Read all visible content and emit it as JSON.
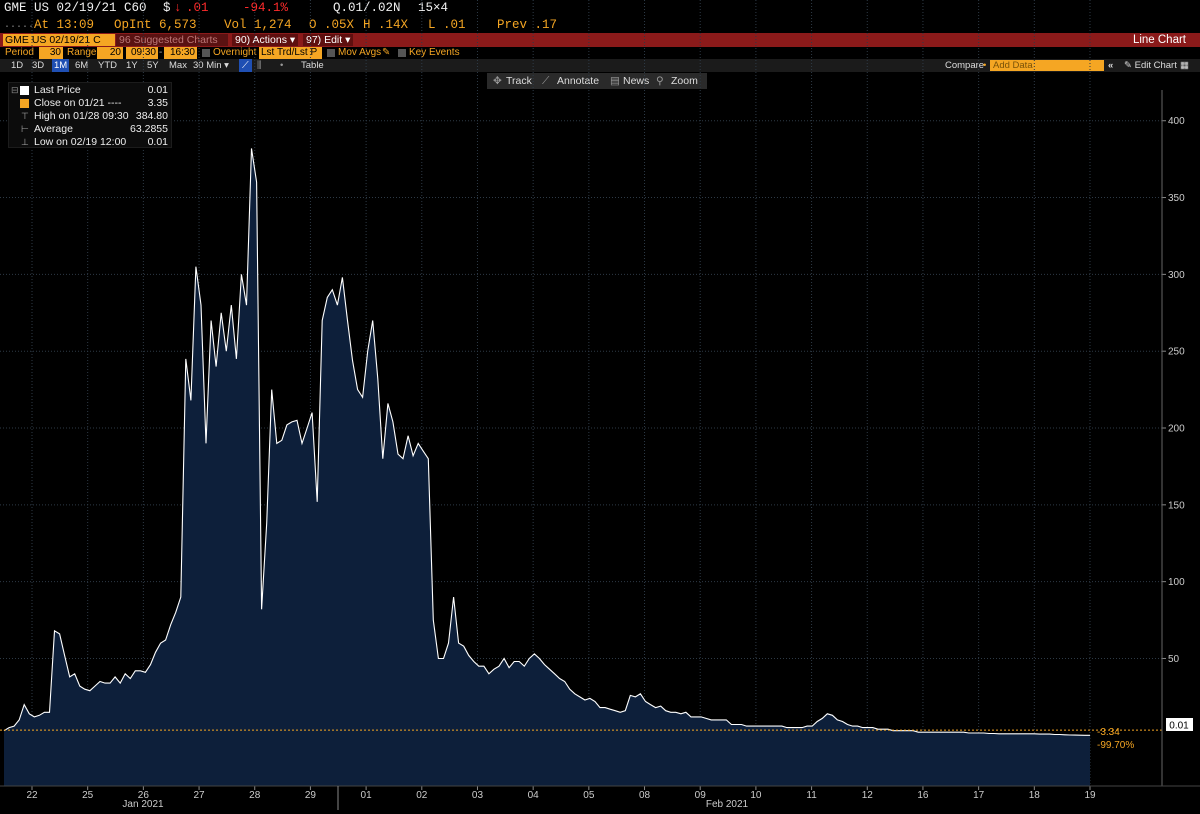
{
  "header": {
    "ticker": "GME US 02/19/21 C60",
    "currency": "$",
    "down_arrow": "↓",
    "last": ".01",
    "pct_change": "-94.1%",
    "quote": "Q.01/.02N",
    "size": "15×4",
    "at_time": "At 13:09",
    "open_int": "OpInt 6,573",
    "volume": "Vol 1,274",
    "open": "O .05X",
    "high": "H .14X",
    "low": "L .01",
    "prev": "Prev .17"
  },
  "toolbar": {
    "security": "GME US 02/19/21 C",
    "suggested": "96 Suggested Charts",
    "actions": "90) Actions ▾",
    "edit": "97) Edit ▾",
    "chart_type": "Line Chart"
  },
  "period_bar": {
    "period_label": "Period",
    "period_value": "30",
    "range_label": "Range",
    "range_value": "20",
    "start_time": "09:30",
    "end_time": "16:30",
    "overnight": "Overnight",
    "lst_trd": "Lst Trd/Lst P",
    "mov_avgs": "Mov Avgs",
    "key_events": "Key Events"
  },
  "range_bar": {
    "ranges": [
      "1D",
      "3D",
      "1M",
      "6M",
      "YTD",
      "1Y",
      "5Y",
      "Max"
    ],
    "selected": "1M",
    "interval": "30 Min ▾",
    "table": "Table",
    "compare": "Compare",
    "add_data_placeholder": "Add Data",
    "edit_chart": "Edit Chart"
  },
  "tools": {
    "track": "Track",
    "annotate": "Annotate",
    "news": "News",
    "zoom": "Zoom"
  },
  "legend": {
    "last_price_label": "Last Price",
    "last_price_value": "0.01",
    "close_label": "Close on 01/21 ----",
    "close_value": "3.35",
    "high_label": "High on 01/28 09:30",
    "high_value": "384.80",
    "avg_label": "Average",
    "avg_value": "63.2855",
    "low_label": "Low on 02/19 12:00",
    "low_value": "0.01"
  },
  "colors": {
    "area_fill": "#0d1f3a",
    "line": "#ffffff",
    "reference": "#f5a623",
    "grid": "#2e3a46",
    "toolbar": "#8b1a1a",
    "accent": "#f5a623",
    "negative": "#ff2b2b"
  },
  "chart_data": {
    "type": "area",
    "title": "",
    "xlabel": "",
    "ylabel": "",
    "ylim": [
      -33,
      420
    ],
    "y_ticks": [
      50,
      100,
      150,
      200,
      250,
      300,
      350,
      400
    ],
    "grid": true,
    "x_tick_labels": [
      "22",
      "25",
      "26",
      "27",
      "28",
      "29",
      "01",
      "02",
      "03",
      "04",
      "05",
      "08",
      "09",
      "10",
      "11",
      "12",
      "16",
      "17",
      "18",
      "19"
    ],
    "month_labels": [
      "Jan 2021",
      "Feb 2021"
    ],
    "reference_line": {
      "value": 3.35,
      "label_change": "-3.34",
      "label_pct": "-99.70%"
    },
    "last_value_label": "0.01",
    "series": [
      {
        "values": [
          3,
          5,
          6,
          10,
          20,
          14,
          12,
          13,
          15,
          15,
          68,
          66,
          52,
          38,
          40,
          32,
          30,
          29,
          32,
          35,
          34,
          34,
          38,
          34,
          40,
          37,
          42,
          42,
          41,
          46,
          54,
          60,
          62,
          72,
          80,
          90,
          245,
          218,
          305,
          280,
          190,
          270,
          240,
          275,
          250,
          280,
          245,
          300,
          280,
          382,
          360,
          82,
          138,
          225,
          190,
          192,
          202,
          204,
          205,
          190,
          200,
          210,
          152,
          270,
          285,
          290,
          280,
          298,
          270,
          244,
          225,
          220,
          250,
          270,
          232,
          180,
          216,
          204,
          183,
          180,
          195,
          182,
          190,
          185,
          180,
          75,
          50,
          50,
          60,
          90,
          60,
          58,
          52,
          48,
          45,
          45,
          40,
          43,
          45,
          50,
          44,
          48,
          48,
          45,
          50,
          53,
          50,
          46,
          43,
          40,
          37,
          35,
          30,
          27,
          25,
          23,
          24,
          22,
          18,
          18,
          17,
          16,
          15,
          16,
          26,
          25,
          27,
          22,
          20,
          18,
          19,
          16,
          15,
          15,
          14,
          15,
          12,
          12,
          12,
          11,
          10,
          10,
          10,
          10,
          7,
          7,
          7,
          6,
          6,
          6,
          6,
          6,
          6,
          6,
          6,
          5,
          5,
          5,
          5,
          6,
          6,
          9,
          11,
          14,
          13,
          10,
          9,
          7,
          6,
          6,
          5,
          5,
          5,
          4,
          4,
          4,
          3,
          3,
          3,
          3,
          3,
          2,
          2,
          2,
          2,
          2,
          2,
          2,
          2,
          2,
          2,
          1.5,
          1.5,
          1.5,
          1.5,
          1.2,
          1.2,
          1,
          1,
          1,
          1,
          1,
          1,
          1,
          1,
          0.8,
          0.8,
          0.8,
          0.5,
          0.5,
          0.3,
          0.2,
          0.1,
          0.05,
          0.02,
          0.01
        ]
      }
    ]
  }
}
